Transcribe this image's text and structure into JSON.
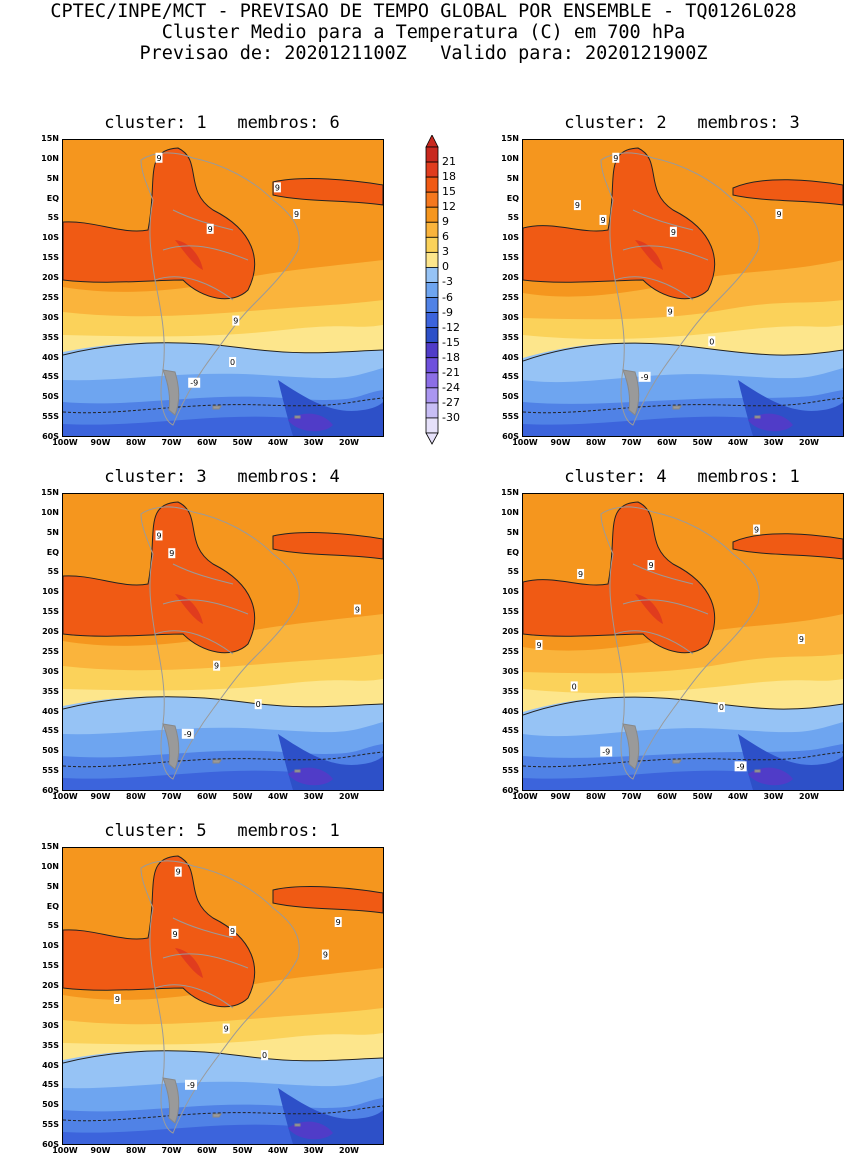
{
  "header": {
    "line1": "CPTEC/INPE/MCT - PREVISAO DE TEMPO GLOBAL POR ENSEMBLE - TQ0126L028",
    "line2": "Cluster Medio para a Temperatura (C) em 700 hPa",
    "line3": "Previsao de: 2020121100Z   Valido para: 2020121900Z"
  },
  "axes": {
    "lat_labels": [
      "15N",
      "10N",
      "5N",
      "EQ",
      "5S",
      "10S",
      "15S",
      "20S",
      "25S",
      "30S",
      "35S",
      "40S",
      "45S",
      "50S",
      "55S",
      "60S"
    ],
    "lon_labels": [
      "100W",
      "90W",
      "80W",
      "70W",
      "60W",
      "50W",
      "40W",
      "30W",
      "20W"
    ]
  },
  "colorbar": {
    "labels": [
      "21",
      "18",
      "15",
      "12",
      "9",
      "6",
      "3",
      "0",
      "-3",
      "-6",
      "-9",
      "-12",
      "-15",
      "-18",
      "-21",
      "-24",
      "-27",
      "-30"
    ],
    "colors": [
      "#c8281e",
      "#e03c1e",
      "#f05a14",
      "#f5781e",
      "#f5961e",
      "#fab43c",
      "#fbd25a",
      "#fde68c",
      "#96c3f5",
      "#6ea5f0",
      "#5082e6",
      "#3c64dc",
      "#2d50c8",
      "#503cc8",
      "#6e50dc",
      "#8c6ee6",
      "#aa96f0",
      "#c8bef5",
      "#e6e1fa"
    ]
  },
  "panels": [
    {
      "title": "cluster: 1   membros: 6",
      "labels": [
        "9",
        "9",
        "9",
        "9",
        "9",
        "0",
        "-9"
      ]
    },
    {
      "title": "cluster: 2   membros: 3",
      "labels": [
        "9",
        "9",
        "9",
        "9",
        "9",
        "9",
        "0",
        "-9"
      ]
    },
    {
      "title": "cluster: 3   membros: 4",
      "labels": [
        "9",
        "9",
        "9",
        "9",
        "0",
        "-9"
      ]
    },
    {
      "title": "cluster: 4   membros: 1",
      "labels": [
        "9",
        "9",
        "9",
        "9",
        "9",
        "0",
        "0",
        "-9",
        "-9"
      ]
    },
    {
      "title": "cluster: 5   membros: 1",
      "labels": [
        "9",
        "9",
        "9",
        "9",
        "9",
        "9",
        "9",
        "0",
        "-9"
      ]
    }
  ]
}
